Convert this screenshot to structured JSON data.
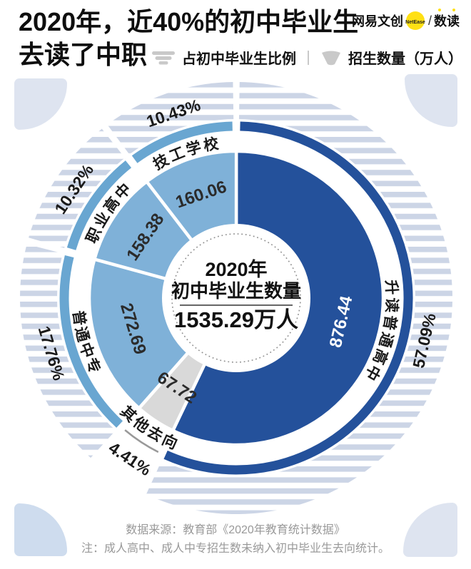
{
  "header": {
    "title_line1": "2020年，近40%的初中毕业生",
    "title_line2": "去读了中职",
    "logo": {
      "brand": "网易文创",
      "badge": "NetEase",
      "slash": "/",
      "sub": "数读"
    },
    "legend": [
      {
        "icon": "striped-wedge",
        "label": "占初中毕业生比例"
      },
      {
        "icon": "solid-wedge",
        "label": "招生数量（万人）"
      }
    ]
  },
  "chart_data": {
    "type": "donut",
    "title": "2020年，近40%的初中毕业生去读了中职",
    "legend": [
      "占初中毕业生比例",
      "招生数量（万人）"
    ],
    "unit": "万人",
    "direction": "clockwise",
    "start_angle_deg": 0,
    "center": {
      "lines": [
        "2020年",
        "初中毕业生数量"
      ],
      "total_label": "1535.29万人",
      "total_value": 1535.29
    },
    "segments": [
      {
        "label": "升读普通高中",
        "value": 876.44,
        "percent": 57.09,
        "style": "dark"
      },
      {
        "label": "其他去向",
        "value": 67.72,
        "percent": 4.41,
        "style": "gray"
      },
      {
        "label": "普通中专",
        "value": 272.69,
        "percent": 17.76,
        "style": "light"
      },
      {
        "label": "职业高中",
        "value": 158.38,
        "percent": 10.32,
        "style": "light"
      },
      {
        "label": "技工学校",
        "value": 160.06,
        "percent": 10.43,
        "style": "light"
      }
    ],
    "colors": {
      "dark": "#24519b",
      "light": "#7fb1d8",
      "gray": "#d9d9d9",
      "arc_light": "#69a6d1",
      "arc_gray": "#999999",
      "stripe": "#ccd5e6",
      "value_on_dark": "#ffffff",
      "value_on_light": "#2b2b2b",
      "label_text": "#1a1a1a",
      "dash_circle": "#8f8f8f"
    }
  },
  "footer": {
    "source": "数据来源：教育部《2020年教育统计数据》",
    "note": "注：成人高中、成人中专招生数未纳入初中毕业生去向统计。"
  }
}
